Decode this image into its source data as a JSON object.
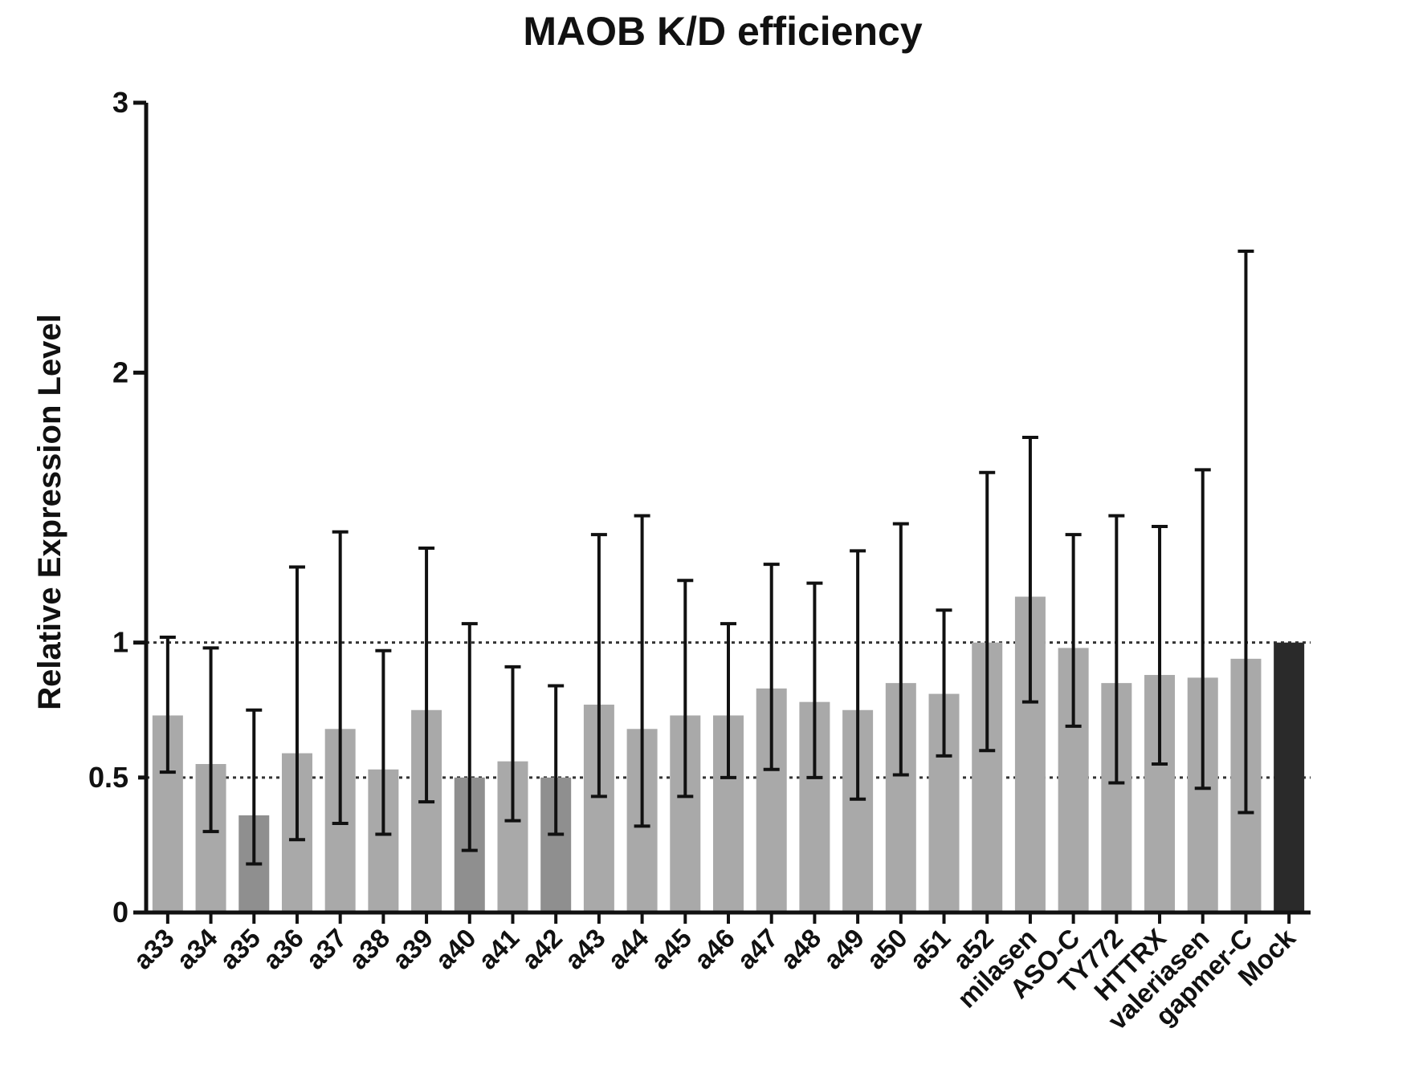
{
  "chart_data": {
    "type": "bar",
    "title": "MAOB K/D efficiency",
    "xlabel": "",
    "ylabel": "Relative Expression Level",
    "ylim": [
      0,
      3
    ],
    "yticks": [
      "0",
      "0.5",
      "1",
      "2",
      "3"
    ],
    "reference_lines": [
      0.5,
      1
    ],
    "categories": [
      "a33",
      "a34",
      "a35",
      "a36",
      "a37",
      "a38",
      "a39",
      "a40",
      "a41",
      "a42",
      "a43",
      "a44",
      "a45",
      "a46",
      "a47",
      "a48",
      "a49",
      "a50",
      "a51",
      "a52",
      "milasen",
      "ASO-C",
      "TY772",
      "HTTRX",
      "valeriasen",
      "gapmer-C",
      "Mock"
    ],
    "values": [
      0.73,
      0.55,
      0.36,
      0.59,
      0.68,
      0.53,
      0.75,
      0.5,
      0.56,
      0.5,
      0.77,
      0.68,
      0.73,
      0.73,
      0.83,
      0.78,
      0.75,
      0.85,
      0.81,
      1.0,
      1.17,
      0.98,
      0.85,
      0.88,
      0.87,
      0.94,
      1.0
    ],
    "error_low": [
      0.52,
      0.3,
      0.18,
      0.27,
      0.33,
      0.29,
      0.41,
      0.23,
      0.34,
      0.29,
      0.43,
      0.32,
      0.43,
      0.5,
      0.53,
      0.5,
      0.42,
      0.51,
      0.58,
      0.6,
      0.78,
      0.69,
      0.48,
      0.55,
      0.46,
      0.37
    ],
    "error_high": [
      1.02,
      0.98,
      0.75,
      1.28,
      1.41,
      0.97,
      1.35,
      1.07,
      0.91,
      0.84,
      1.4,
      1.47,
      1.23,
      1.07,
      1.29,
      1.22,
      1.34,
      1.44,
      1.12,
      1.63,
      1.76,
      1.4,
      1.47,
      1.43,
      1.64,
      2.45
    ],
    "colors": {
      "bar": "#a9a9a9",
      "bar_dark": "#8f8f8f",
      "mock": "#2a2a2a",
      "axis": "#111111",
      "error": "#111111",
      "refline": "#333333"
    },
    "dark_bars": [
      "a35",
      "a40",
      "a42"
    ]
  }
}
